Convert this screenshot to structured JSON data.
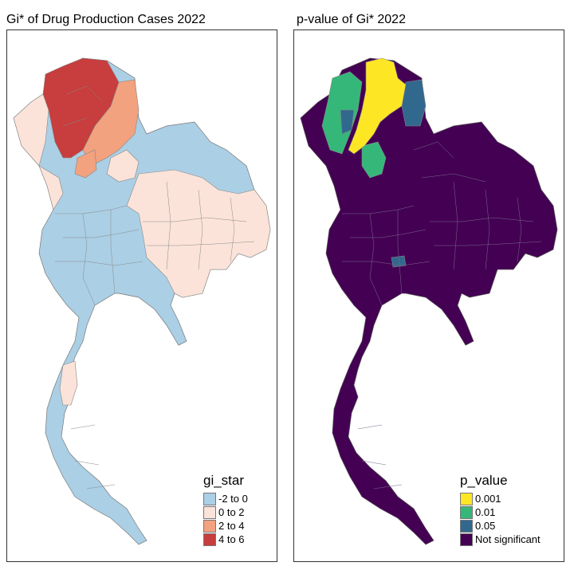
{
  "maps": {
    "left": {
      "title": "Gi* of Drug Production Cases 2022"
    },
    "right": {
      "title": "p-value of Gi* 2022"
    }
  },
  "legends": {
    "gi_star": {
      "title": "gi_star",
      "items": [
        {
          "label": "-2 to 0",
          "color": "#abcfe5"
        },
        {
          "label": "0 to 2",
          "color": "#fbe3d9"
        },
        {
          "label": "2 to 4",
          "color": "#f2a27f"
        },
        {
          "label": "4 to 6",
          "color": "#c83d3d"
        }
      ]
    },
    "p_value": {
      "title": "p_value",
      "items": [
        {
          "label": "0.001",
          "color": "#fde725"
        },
        {
          "label": "0.01",
          "color": "#35b779"
        },
        {
          "label": "0.05",
          "color": "#31688e"
        },
        {
          "label": "Not significant",
          "color": "#440154"
        }
      ]
    }
  }
}
